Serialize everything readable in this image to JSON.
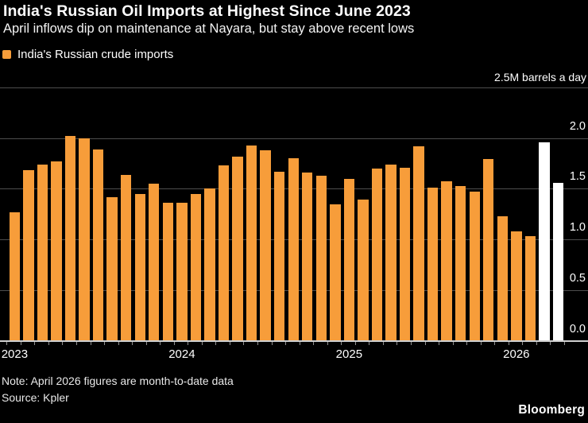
{
  "header": {
    "title": "India's Russian Oil Imports at Highest Since June 2023",
    "subtitle": "April inflows dip on maintenance at Nayara, but stay above recent lows"
  },
  "legend": {
    "label": "India's Russian crude imports",
    "swatch_color": "#F79D3A"
  },
  "footer": {
    "note": "Note: April 2026 figures are month-to-date data",
    "source": "Source: Kpler",
    "brand": "Bloomberg"
  },
  "colors": {
    "background": "#000000",
    "bar": "#F79D3A",
    "bar_highlight": "#FFFFFF",
    "gridline": "#4D4D4D",
    "axis_line": "#CFCFCF",
    "tick": "#909090",
    "text": "#FFFFFF"
  },
  "chart_data": {
    "type": "bar",
    "title": "India's Russian Oil Imports at Highest Since June 2023",
    "subtitle": "April inflows dip on maintenance at Nayara, but stay above recent lows",
    "series_name": "India's Russian crude imports",
    "unit_label": "2.5M barrels a day",
    "unit": "M barrels a day",
    "grid": true,
    "legend_position": "top-left",
    "ylim": [
      0,
      2.5
    ],
    "x": [
      "Jan 2023",
      "Feb 2023",
      "Mar 2023",
      "Apr 2023",
      "May 2023",
      "Jun 2023",
      "Jul 2023",
      "Aug 2023",
      "Sep 2023",
      "Oct 2023",
      "Nov 2023",
      "Dec 2023",
      "Jan 2024",
      "Feb 2024",
      "Mar 2024",
      "Apr 2024",
      "May 2024",
      "Jun 2024",
      "Jul 2024",
      "Aug 2024",
      "Sep 2024",
      "Oct 2024",
      "Nov 2024",
      "Dec 2024",
      "Jan 2025",
      "Feb 2025",
      "Mar 2025",
      "Apr 2025",
      "May 2025",
      "Jun 2025",
      "Jul 2025",
      "Aug 2025",
      "Sep 2025",
      "Oct 2025",
      "Nov 2025",
      "Dec 2025",
      "Jan 2026",
      "Feb 2026",
      "Mar 2026",
      "Apr 2026"
    ],
    "values": [
      1.27,
      1.68,
      1.74,
      1.77,
      2.02,
      2.0,
      1.89,
      1.42,
      1.64,
      1.45,
      1.55,
      1.36,
      1.36,
      1.45,
      1.5,
      1.73,
      1.82,
      1.93,
      1.88,
      1.67,
      1.8,
      1.66,
      1.63,
      1.35,
      1.6,
      1.39,
      1.7,
      1.74,
      1.71,
      1.92,
      1.51,
      1.57,
      1.53,
      1.47,
      1.79,
      1.23,
      1.08,
      1.03,
      1.96,
      1.56
    ],
    "highlight_from_index": 38,
    "gridline_values": [
      2.5,
      2.0,
      1.5,
      1.0,
      0.5
    ],
    "y_ticks_right": [
      {
        "label": "2.0",
        "value": 2.0
      },
      {
        "label": "1.5",
        "value": 1.5
      },
      {
        "label": "1.0",
        "value": 1.0
      },
      {
        "label": "0.5",
        "value": 0.5
      },
      {
        "label": "0.0",
        "value": 0.0
      }
    ],
    "x_year_labels": [
      {
        "label": "2023",
        "month_index": 0
      },
      {
        "label": "2024",
        "month_index": 12
      },
      {
        "label": "2025",
        "month_index": 24
      },
      {
        "label": "2026",
        "month_index": 36
      }
    ]
  }
}
